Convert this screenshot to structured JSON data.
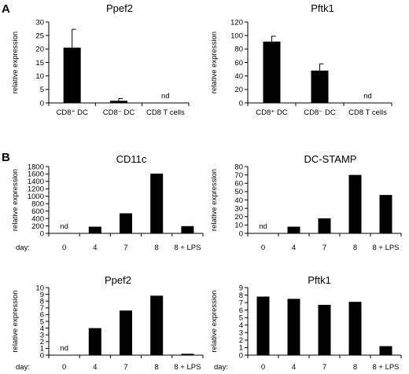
{
  "panels": [
    {
      "letter": "A"
    },
    {
      "letter": "B"
    }
  ],
  "chart_data": [
    {
      "panel": "A",
      "type": "bar",
      "title": "Ppef2",
      "ylabel": "relative expression",
      "ylim": [
        0,
        30
      ],
      "yticks": [
        0,
        5,
        10,
        15,
        20,
        25,
        30
      ],
      "categories": [
        "CD8⁺ DC",
        "CD8⁻ DC",
        "CD8 T cells"
      ],
      "values": [
        20.5,
        0.8,
        null
      ],
      "errors": [
        6.8,
        0.8,
        null
      ],
      "annotations": [
        "",
        "",
        "nd"
      ]
    },
    {
      "panel": "A",
      "type": "bar",
      "title": "Pftk1",
      "ylabel": "relative expression",
      "ylim": [
        0,
        120
      ],
      "yticks": [
        0,
        20,
        40,
        60,
        80,
        100,
        120
      ],
      "categories": [
        "CD8⁺ DC",
        "CD8⁻ DC",
        "CD8 T cells"
      ],
      "values": [
        91,
        48,
        null
      ],
      "errors": [
        8,
        10,
        null
      ],
      "annotations": [
        "",
        "",
        "nd"
      ]
    },
    {
      "panel": "B",
      "type": "bar",
      "title": "CD11c",
      "ylabel": "relative expression",
      "ylim": [
        0,
        1800
      ],
      "yticks": [
        0,
        200,
        400,
        600,
        800,
        1000,
        1200,
        1400,
        1600,
        1800
      ],
      "xprefix": "day:",
      "categories": [
        "0",
        "4",
        "7",
        "8",
        "8 + LPS"
      ],
      "values": [
        null,
        180,
        540,
        1610,
        195
      ],
      "annotations": [
        "nd",
        "",
        "",
        "",
        ""
      ]
    },
    {
      "panel": "B",
      "type": "bar",
      "title": "DC-STAMP",
      "ylabel": "relative expression",
      "ylim": [
        0,
        80
      ],
      "yticks": [
        0,
        10,
        20,
        30,
        40,
        50,
        60,
        70,
        80
      ],
      "xprefix": "",
      "categories": [
        "0",
        "4",
        "7",
        "8",
        "8 + LPS"
      ],
      "values": [
        null,
        8,
        18,
        70,
        46
      ],
      "annotations": [
        "nd",
        "",
        "",
        "",
        ""
      ]
    },
    {
      "panel": "B",
      "type": "bar",
      "title": "Ppef2",
      "ylabel": "relative expression",
      "ylim": [
        0,
        10
      ],
      "yticks": [
        0,
        1,
        2,
        3,
        4,
        5,
        6,
        7,
        8,
        9,
        10
      ],
      "xprefix": "day:",
      "categories": [
        "0",
        "4",
        "7",
        "8",
        "8 + LPS"
      ],
      "values": [
        null,
        4.0,
        6.6,
        8.8,
        0.2
      ],
      "annotations": [
        "nd",
        "",
        "",
        "",
        ""
      ]
    },
    {
      "panel": "B",
      "type": "bar",
      "title": "Pftk1",
      "ylabel": "relative expression",
      "ylim": [
        0,
        9
      ],
      "yticks": [
        0,
        1,
        2,
        3,
        4,
        5,
        6,
        7,
        8,
        9
      ],
      "xprefix": "day:",
      "categories": [
        "0",
        "4",
        "7",
        "8",
        "8 + LPS"
      ],
      "values": [
        7.8,
        7.5,
        6.7,
        7.1,
        1.2
      ],
      "annotations": [
        "",
        "",
        "",
        "",
        ""
      ]
    }
  ]
}
